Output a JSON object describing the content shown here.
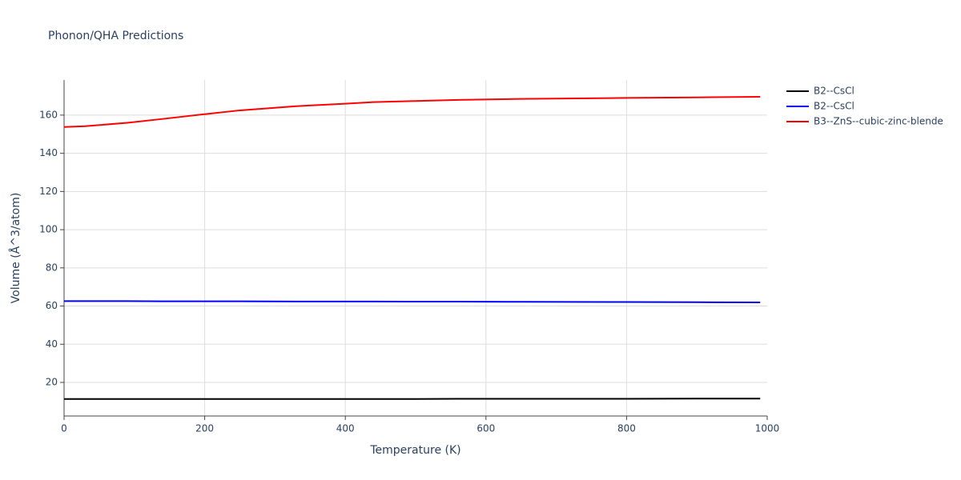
{
  "chart_data": {
    "type": "line",
    "title": "Phonon/QHA Predictions",
    "x_label": "Temperature (K)",
    "y_label": "Volume (Å^3/atom)",
    "x": [
      0,
      30,
      90,
      140,
      200,
      250,
      330,
      400,
      440,
      500,
      560,
      650,
      800,
      900,
      990
    ],
    "series": [
      {
        "name": "B2--CsCl",
        "color": "#000000",
        "values": [
          11.3,
          11.3,
          11.3,
          11.3,
          11.3,
          11.3,
          11.3,
          11.3,
          11.3,
          11.3,
          11.4,
          11.4,
          11.4,
          11.5,
          11.5
        ]
      },
      {
        "name": "B2--CsCl",
        "color": "#0000ff",
        "values": [
          62.6,
          62.6,
          62.6,
          62.5,
          62.5,
          62.5,
          62.4,
          62.4,
          62.4,
          62.3,
          62.3,
          62.2,
          62.1,
          62.0,
          61.9
        ]
      },
      {
        "name": "B3--ZnS--cubic-zinc-blende",
        "color": "#ff0000",
        "values": [
          153.8,
          154.2,
          156.0,
          158.0,
          160.5,
          162.5,
          164.7,
          166.0,
          166.8,
          167.4,
          168.0,
          168.5,
          169.0,
          169.3,
          169.6
        ]
      }
    ],
    "xlim": [
      0,
      1000
    ],
    "xticks": [
      0,
      200,
      400,
      600,
      800,
      1000
    ],
    "ylim": [
      2.4,
      178.4
    ],
    "yticks": [
      20,
      40,
      60,
      80,
      100,
      120,
      140,
      160
    ],
    "grid": true,
    "legend": "right"
  }
}
